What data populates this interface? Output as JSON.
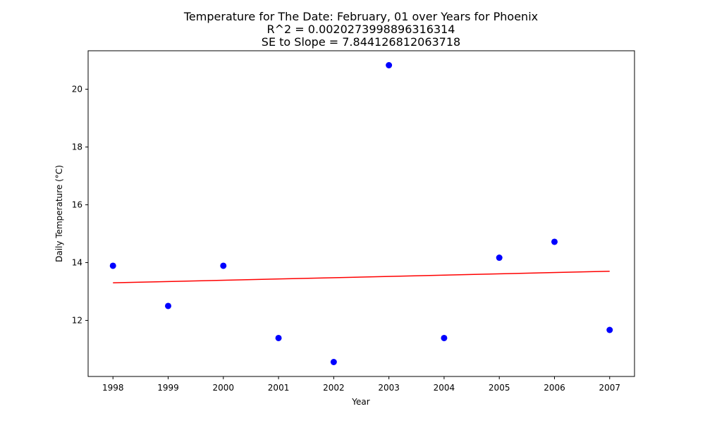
{
  "chart_data": {
    "type": "scatter",
    "title_lines": [
      "Temperature for The Date: February, 01 over Years for Phoenix",
      "R^2 = 0.0020273998896316314",
      "SE to Slope = 7.844126812063718"
    ],
    "xlabel": "Year",
    "ylabel": "Daily Temperature (°C)",
    "xlim": [
      1997.55,
      2007.45
    ],
    "ylim": [
      10.06,
      21.33
    ],
    "x_ticks": [
      1998,
      1999,
      2000,
      2001,
      2002,
      2003,
      2004,
      2005,
      2006,
      2007
    ],
    "x_tick_labels": [
      "1998",
      "1999",
      "2000",
      "2001",
      "2002",
      "2003",
      "2004",
      "2005",
      "2006",
      "2007"
    ],
    "y_ticks": [
      12,
      14,
      16,
      18,
      20
    ],
    "y_tick_labels": [
      "12",
      "14",
      "16",
      "18",
      "20"
    ],
    "grid": false,
    "series": [
      {
        "type": "scatter",
        "color": "#0000ff",
        "x": [
          1998,
          1999,
          2000,
          2001,
          2002,
          2003,
          2004,
          2005,
          2006,
          2007
        ],
        "y": [
          13.89,
          12.5,
          13.89,
          11.39,
          10.56,
          20.83,
          11.39,
          14.17,
          14.72,
          11.67
        ]
      },
      {
        "type": "line",
        "color": "#ff0000",
        "x": [
          1998,
          2007
        ],
        "y": [
          13.3,
          13.7
        ]
      }
    ]
  }
}
